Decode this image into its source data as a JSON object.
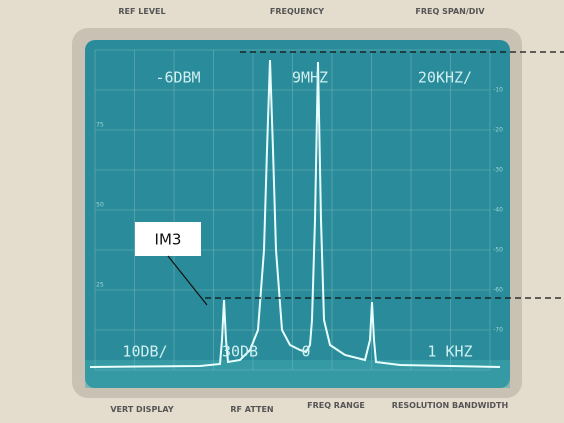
{
  "header": {
    "labels": [
      "REF LEVEL",
      "FREQUENCY",
      "FREQ SPAN/DIV"
    ]
  },
  "screen": {
    "top_readouts": [
      "-6DBM",
      "9MHZ",
      "20KHZ/"
    ],
    "bottom_readouts": [
      "10DB/",
      "30DB",
      "0",
      "1 KHZ"
    ],
    "right_scale": [
      "-10",
      "-20",
      "-30",
      "-40",
      "-50",
      "-60",
      "-70"
    ],
    "left_scale": [
      "75",
      "50",
      "25"
    ]
  },
  "annotation": {
    "label": "IM3"
  },
  "footer": {
    "labels": [
      "VERT DISPLAY",
      "RF ATTEN",
      "FREQ RANGE",
      "RESOLUTION BANDWIDTH"
    ]
  }
}
